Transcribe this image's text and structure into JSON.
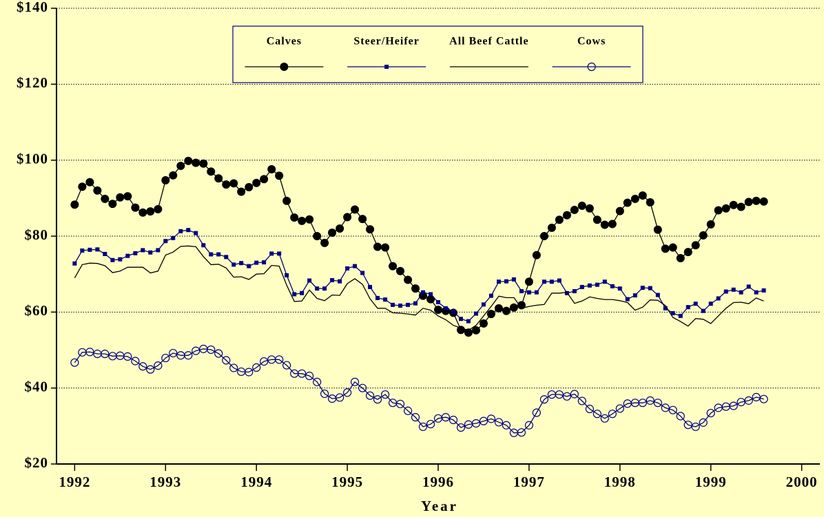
{
  "chart_data": {
    "type": "line",
    "xlabel": "Year",
    "xlim": [
      1991.8,
      2000.2
    ],
    "xticks": [
      1992,
      1993,
      1994,
      1995,
      1996,
      1997,
      1998,
      1999,
      2000
    ],
    "ylim": [
      20,
      140
    ],
    "yticks": [
      {
        "value": 20,
        "label": "$20"
      },
      {
        "value": 40,
        "label": "$40"
      },
      {
        "value": 60,
        "label": "$60"
      },
      {
        "value": 80,
        "label": "$80"
      },
      {
        "value": 100,
        "label": "$100"
      },
      {
        "value": 120,
        "label": "$120"
      },
      {
        "value": 140,
        "label": "$140"
      }
    ],
    "grid": true,
    "legend": "top",
    "x": [
      1992,
      1992.083,
      1992.167,
      1992.25,
      1992.333,
      1992.417,
      1992.5,
      1992.583,
      1992.667,
      1992.75,
      1992.833,
      1992.917,
      1993,
      1993.083,
      1993.167,
      1993.25,
      1993.333,
      1993.417,
      1993.5,
      1993.583,
      1993.667,
      1993.75,
      1993.833,
      1993.917,
      1994,
      1994.083,
      1994.167,
      1994.25,
      1994.333,
      1994.417,
      1994.5,
      1994.583,
      1994.667,
      1994.75,
      1994.833,
      1994.917,
      1995,
      1995.083,
      1995.167,
      1995.25,
      1995.333,
      1995.417,
      1995.5,
      1995.583,
      1995.667,
      1995.75,
      1995.833,
      1995.917,
      1996,
      1996.083,
      1996.167,
      1996.25,
      1996.333,
      1996.417,
      1996.5,
      1996.583,
      1996.667,
      1996.75,
      1996.833,
      1996.917,
      1997,
      1997.083,
      1997.167,
      1997.25,
      1997.333,
      1997.417,
      1997.5,
      1997.583,
      1997.667,
      1997.75,
      1997.833,
      1997.917,
      1998,
      1998.083,
      1998.167,
      1998.25,
      1998.333,
      1998.417,
      1998.5,
      1998.583,
      1998.667,
      1998.75,
      1998.833,
      1998.917,
      1999,
      1999.083,
      1999.167,
      1999.25,
      1999.333,
      1999.417,
      1999.5,
      1999.583
    ],
    "series": [
      {
        "name": "Calves",
        "color": "#000000",
        "marker": "circle",
        "values": [
          88.3,
          93,
          94.2,
          92,
          89.8,
          88.5,
          90.2,
          90.5,
          87.5,
          86.2,
          86.5,
          87.1,
          94.7,
          96,
          98.5,
          99.8,
          99.3,
          99.1,
          97,
          95.2,
          93.6,
          93.9,
          91.7,
          92.9,
          94,
          95,
          97.6,
          95.9,
          89.3,
          84.9,
          84,
          84.4,
          80,
          78.2,
          80.9,
          82,
          85,
          87,
          84.5,
          81.8,
          77.2,
          77,
          72.1,
          70.8,
          68.5,
          66.2,
          64.3,
          63.4,
          60.6,
          60.3,
          59.8,
          55.3,
          54.6,
          55.2,
          57,
          59.5,
          61,
          60.3,
          61.2,
          61.8,
          68,
          75,
          80,
          82.2,
          84.3,
          85.5,
          86.9,
          88,
          87.3,
          84.3,
          83,
          83.2,
          86.6,
          88.8,
          89.8,
          90.7,
          88.9,
          81.7,
          76.7,
          77,
          74.2,
          75.8,
          77.6,
          80.2,
          83.1,
          86.8,
          87.3,
          88.2,
          87.7,
          89,
          89.3,
          89.1
        ]
      },
      {
        "name": "Steer/Heifer",
        "color": "#000080",
        "marker": "square",
        "values": [
          72.8,
          76.2,
          76.4,
          76.5,
          75.3,
          73.7,
          73.9,
          74.8,
          75.5,
          76.3,
          75.7,
          76.3,
          78.7,
          79.5,
          81.3,
          81.6,
          80.8,
          77.6,
          75.2,
          75.2,
          74.5,
          72.5,
          72.9,
          72.1,
          73,
          73.1,
          75.4,
          75.4,
          69.7,
          64.7,
          65,
          68.3,
          66.2,
          66.2,
          68.4,
          68.1,
          71.5,
          72.1,
          70.3,
          66.6,
          63.7,
          63.3,
          61.9,
          61.7,
          61.9,
          62.3,
          65.2,
          64.7,
          62.6,
          61,
          60.2,
          58.2,
          57.6,
          59.6,
          62,
          64.3,
          68,
          68.1,
          68.6,
          65.5,
          65.2,
          65.2,
          68,
          68,
          68.3,
          65,
          65.5,
          66.6,
          67,
          67.2,
          68,
          66.8,
          66.2,
          63.4,
          64.4,
          66.4,
          66.3,
          64.5,
          61,
          59.7,
          59,
          61.3,
          62.2,
          60.3,
          62.2,
          63.6,
          65.4,
          65.9,
          65.2,
          66.7,
          65.2,
          65.7
        ]
      },
      {
        "name": "All Beef Cattle",
        "color": "#000000",
        "marker": "none",
        "values": [
          69,
          72.5,
          72.9,
          72.8,
          72.2,
          70.4,
          70.8,
          71.8,
          71.8,
          71.8,
          70.3,
          70.8,
          75,
          75.8,
          77.3,
          77.4,
          77.2,
          74.6,
          72.5,
          72.6,
          71.6,
          69.2,
          69.3,
          68.6,
          70,
          70.1,
          72.3,
          72.1,
          67.1,
          62.8,
          62.9,
          65.8,
          63.6,
          63,
          64.5,
          64.4,
          67.5,
          68.8,
          67.3,
          63.5,
          61,
          61,
          59.8,
          59.7,
          59.5,
          59.2,
          61,
          60.5,
          59,
          58,
          56.5,
          55.8,
          55.2,
          56.5,
          59,
          61.5,
          64.2,
          63.8,
          63.8,
          61,
          61.5,
          61.8,
          62,
          65,
          65,
          65.2,
          62.3,
          62.9,
          64,
          63.6,
          63.3,
          63.3,
          63,
          62.5,
          60.5,
          61.3,
          63.2,
          63.1,
          61.7,
          58.6,
          57.5,
          56.3,
          58.3,
          58.1,
          57,
          59,
          61,
          62.5,
          62.6,
          62.2,
          63.7,
          62.9
        ]
      },
      {
        "name": "Cows",
        "color": "#000080",
        "marker": "open-circle",
        "values": [
          46.7,
          49.4,
          49.5,
          49,
          49,
          48.4,
          48.5,
          48.3,
          47.1,
          45.7,
          44.9,
          45.9,
          47.9,
          49.2,
          48.6,
          48.6,
          49.8,
          50.3,
          50.1,
          49.1,
          47.3,
          45.3,
          44.3,
          44.2,
          45.4,
          47,
          47.5,
          47.5,
          46,
          43.8,
          43.8,
          43.2,
          41.6,
          38.5,
          37.2,
          37.5,
          38.8,
          41.6,
          40,
          38,
          37,
          38.3,
          36.1,
          35.8,
          34,
          32.3,
          29.8,
          30.5,
          32,
          32.3,
          31.6,
          29.6,
          30.4,
          30.7,
          31.3,
          31.9,
          31,
          30.2,
          28.2,
          28.3,
          30.2,
          33.5,
          37,
          38.3,
          38.3,
          37.8,
          38.4,
          36.6,
          34.5,
          33.2,
          32,
          33.2,
          34.6,
          35.9,
          36.1,
          36.1,
          36.7,
          36.1,
          34.8,
          34.2,
          32.6,
          30.3,
          29.8,
          30.9,
          33.4,
          34.8,
          35.1,
          35.3,
          36.3,
          36.7,
          37.6,
          37.1
        ]
      }
    ]
  }
}
